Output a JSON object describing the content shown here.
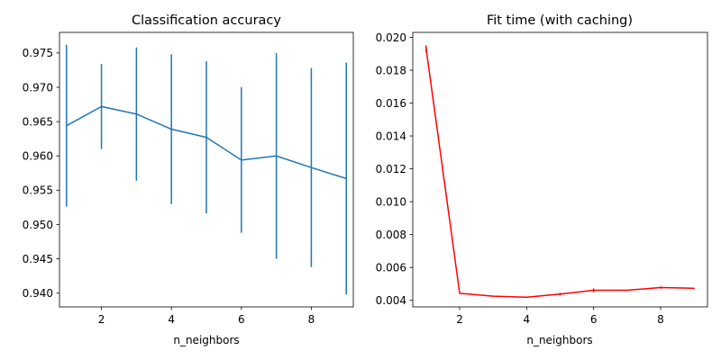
{
  "chart_data": [
    {
      "type": "line",
      "title": "Classification accuracy",
      "xlabel": "n_neighbors",
      "ylabel": "",
      "xlim": [
        0.8,
        9.2
      ],
      "ylim": [
        0.938,
        0.978
      ],
      "grid": false,
      "xticks": [
        2,
        4,
        6,
        8
      ],
      "xtick_labels": [
        "2",
        "4",
        "6",
        "8"
      ],
      "yticks": [
        0.94,
        0.945,
        0.95,
        0.955,
        0.96,
        0.965,
        0.97,
        0.975
      ],
      "ytick_labels": [
        "0.940",
        "0.945",
        "0.950",
        "0.955",
        "0.960",
        "0.965",
        "0.970",
        "0.975"
      ],
      "color": "#1f77b4",
      "series": [
        {
          "x": [
            1,
            2,
            3,
            4,
            5,
            6,
            7,
            8,
            9
          ],
          "values": [
            0.9644,
            0.9672,
            0.9661,
            0.9639,
            0.9627,
            0.9594,
            0.96,
            0.9583,
            0.9567
          ],
          "errors": [
            0.0118,
            0.0062,
            0.0097,
            0.0109,
            0.0111,
            0.0106,
            0.015,
            0.0145,
            0.0169
          ]
        }
      ]
    },
    {
      "type": "line",
      "title": "Fit time (with caching)",
      "xlabel": "n_neighbors",
      "ylabel": "",
      "xlim": [
        0.6,
        9.4
      ],
      "ylim": [
        0.0036,
        0.0203
      ],
      "grid": false,
      "xticks": [
        2,
        4,
        6,
        8
      ],
      "xtick_labels": [
        "2",
        "4",
        "6",
        "8"
      ],
      "yticks": [
        0.004,
        0.006,
        0.008,
        0.01,
        0.012,
        0.014,
        0.016,
        0.018,
        0.02
      ],
      "ytick_labels": [
        "0.004",
        "0.006",
        "0.008",
        "0.010",
        "0.012",
        "0.014",
        "0.016",
        "0.018",
        "0.020"
      ],
      "color": "#ff0000",
      "series": [
        {
          "x": [
            1,
            2,
            3,
            4,
            5,
            6,
            7,
            8,
            9
          ],
          "values": [
            0.0193,
            0.00443,
            0.00425,
            0.00419,
            0.00438,
            0.00461,
            0.00461,
            0.00478,
            0.00473
          ],
          "errors": [
            0.0002,
            3e-05,
            2e-05,
            2e-05,
            8e-05,
            0.00012,
            3e-05,
            7e-05,
            3e-05
          ]
        }
      ]
    }
  ]
}
